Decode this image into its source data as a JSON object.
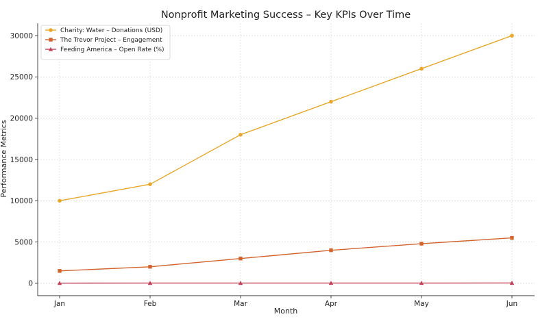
{
  "chart_data": {
    "type": "line",
    "title": "Nonprofit Marketing Success – Key KPIs Over Time",
    "xlabel": "Month",
    "ylabel": "Performance Metrics",
    "categories": [
      "Jan",
      "Feb",
      "Mar",
      "Apr",
      "May",
      "Jun"
    ],
    "ylim": [
      -1500,
      31500
    ],
    "yticks": [
      0,
      5000,
      10000,
      15000,
      20000,
      25000,
      30000
    ],
    "grid": true,
    "legend_position": "top-left",
    "series": [
      {
        "name": "Charity: Water – Donations (USD)",
        "values": [
          10000,
          12000,
          18000,
          22000,
          26000,
          30000
        ],
        "color": "#E8A72A",
        "marker": "circle"
      },
      {
        "name": "The Trevor Project – Engagement",
        "values": [
          1500,
          2000,
          3000,
          4000,
          4800,
          5500
        ],
        "color": "#D2642E",
        "marker": "square"
      },
      {
        "name": "Feeding America – Open Rate (%)",
        "values": [
          22,
          25,
          27,
          30,
          32,
          35
        ],
        "color": "#C2415A",
        "marker": "triangle"
      }
    ]
  }
}
